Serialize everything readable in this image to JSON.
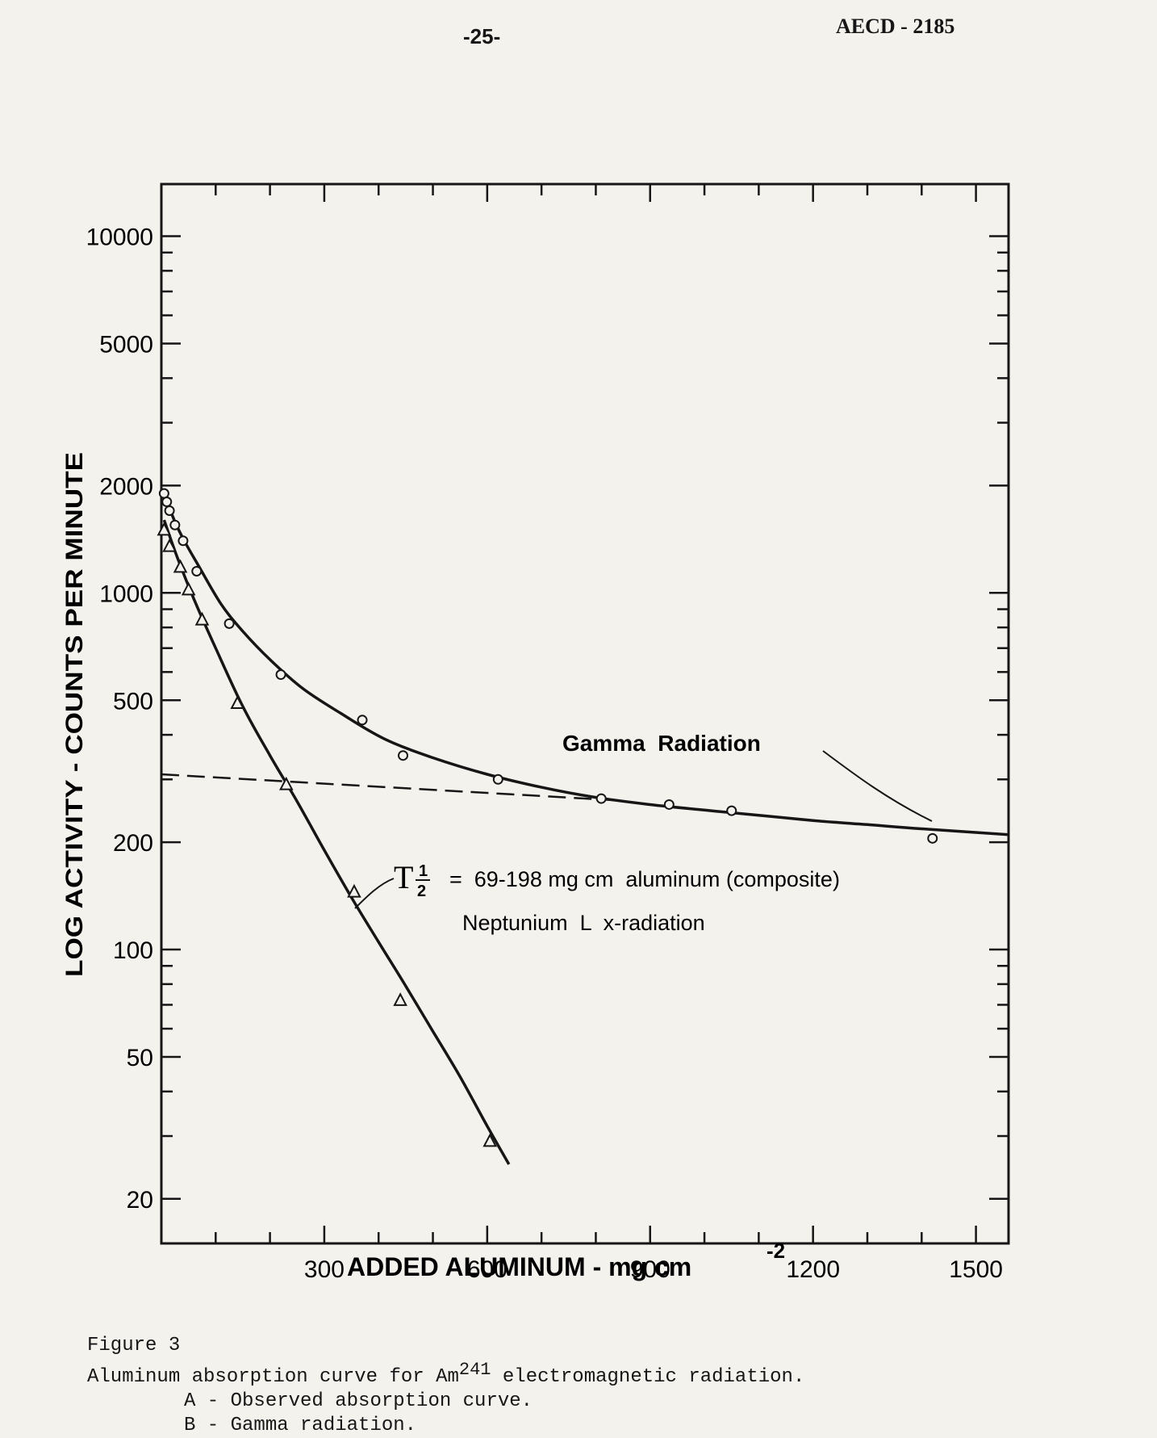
{
  "header": {
    "page_number": "-25-",
    "document_id": "AECD - 2185"
  },
  "chart_data": {
    "type": "line",
    "scale_y": "log",
    "xlabel": "ADDED ALUMINUM - mg cm",
    "xlabel_superscript": "-2",
    "ylabel": "LOG ACTIVITY - COUNTS  PER MINUTE",
    "xlim": [
      0,
      1560
    ],
    "ylim": [
      15,
      14000
    ],
    "x_ticks": [
      300,
      600,
      900,
      1200,
      1500
    ],
    "x_tick_labels": [
      "300",
      "600",
      "900",
      "1200",
      "1500"
    ],
    "y_ticks": [
      10000,
      5000,
      2000,
      1000,
      500,
      200,
      100,
      50,
      20
    ],
    "y_tick_labels": [
      "10000",
      "5000",
      "2000",
      "1000",
      "500",
      "200",
      "100",
      "50",
      "20"
    ],
    "series": [
      {
        "name": "A - Observed absorption curve",
        "marker": "circle",
        "points": [
          [
            5,
            1900
          ],
          [
            10,
            1800
          ],
          [
            15,
            1700
          ],
          [
            25,
            1550
          ],
          [
            40,
            1400
          ],
          [
            65,
            1150
          ],
          [
            125,
            820
          ],
          [
            220,
            590
          ],
          [
            370,
            440
          ],
          [
            445,
            350
          ],
          [
            620,
            300
          ],
          [
            810,
            265
          ],
          [
            935,
            255
          ],
          [
            1050,
            245
          ],
          [
            1420,
            205
          ]
        ],
        "curve": [
          [
            5,
            1950
          ],
          [
            20,
            1650
          ],
          [
            40,
            1420
          ],
          [
            70,
            1180
          ],
          [
            110,
            930
          ],
          [
            150,
            780
          ],
          [
            200,
            650
          ],
          [
            260,
            540
          ],
          [
            330,
            460
          ],
          [
            410,
            390
          ],
          [
            500,
            345
          ],
          [
            600,
            310
          ],
          [
            700,
            285
          ],
          [
            800,
            267
          ],
          [
            900,
            255
          ],
          [
            1000,
            246
          ],
          [
            1100,
            238
          ],
          [
            1200,
            230
          ],
          [
            1300,
            224
          ],
          [
            1400,
            218
          ],
          [
            1560,
            210
          ]
        ]
      },
      {
        "name": "Neptunium L x-radiation",
        "marker": "triangle",
        "points": [
          [
            5,
            1500
          ],
          [
            15,
            1350
          ],
          [
            35,
            1180
          ],
          [
            50,
            1020
          ],
          [
            75,
            840
          ],
          [
            140,
            490
          ],
          [
            230,
            290
          ],
          [
            355,
            145
          ],
          [
            440,
            72
          ],
          [
            605,
            29
          ]
        ],
        "curve": [
          [
            5,
            1600
          ],
          [
            30,
            1250
          ],
          [
            60,
            960
          ],
          [
            100,
            700
          ],
          [
            150,
            480
          ],
          [
            200,
            350
          ],
          [
            250,
            260
          ],
          [
            300,
            190
          ],
          [
            350,
            140
          ],
          [
            400,
            105
          ],
          [
            450,
            79
          ],
          [
            500,
            59
          ],
          [
            550,
            44
          ],
          [
            600,
            32
          ],
          [
            640,
            25
          ]
        ]
      },
      {
        "name": "Gamma radiation (extrapolated)",
        "style": "dashed",
        "curve": [
          [
            0,
            310
          ],
          [
            840,
            262
          ]
        ]
      }
    ],
    "annotations": [
      {
        "text": "Gamma  Radiation",
        "points_to": [
          1420,
          225
        ]
      },
      {
        "symbol": "T",
        "fraction_num": "1",
        "fraction_den": "2",
        "text": "=  69-198 mg cm  aluminum (composite)"
      },
      {
        "text": "Neptunium  L  x-radiation"
      }
    ]
  },
  "caption": {
    "figure": "Figure 3",
    "line1_a": "Aluminum absorption curve for Am",
    "line1_sup": "241",
    "line1_b": " electromagnetic radiation.",
    "item_a": "A - Observed absorption curve.",
    "item_b": "B - Gamma radiation."
  }
}
